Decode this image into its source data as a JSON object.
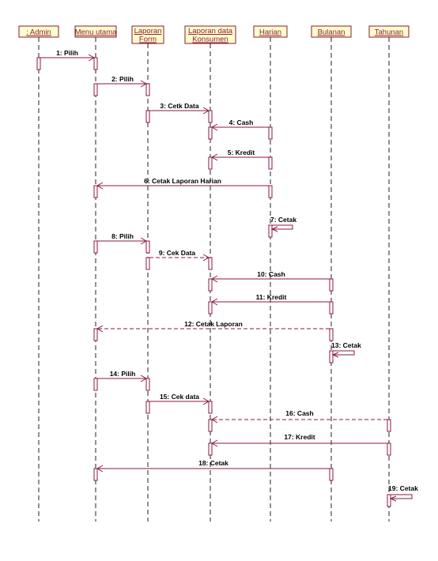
{
  "objects": [
    {
      "id": "admin",
      "label": ": Admin"
    },
    {
      "id": "menu",
      "label": "Menu utama"
    },
    {
      "id": "laporan_form",
      "label": "Laporan Form",
      "lines": [
        "Laporan",
        "Form"
      ]
    },
    {
      "id": "laporan_data",
      "label": "Laporan data Konsumen",
      "lines": [
        "Laporan data",
        "Konsumen"
      ]
    },
    {
      "id": "harian",
      "label": "Harian"
    },
    {
      "id": "bulanan",
      "label": "Bulanan"
    },
    {
      "id": "tahunan",
      "label": "Tahunan"
    }
  ],
  "messages": [
    {
      "n": 1,
      "label": "1: Pilih",
      "from": "admin",
      "to": "menu",
      "style": "solid"
    },
    {
      "n": 2,
      "label": "2: Pilih",
      "from": "menu",
      "to": "laporan_form",
      "style": "solid"
    },
    {
      "n": 3,
      "label": "3: Cetk Data",
      "from": "laporan_form",
      "to": "laporan_data",
      "style": "solid"
    },
    {
      "n": 4,
      "label": "4: Cash",
      "from": "harian",
      "to": "laporan_data",
      "style": "solid"
    },
    {
      "n": 5,
      "label": "5: Kredit",
      "from": "harian",
      "to": "laporan_data",
      "style": "solid"
    },
    {
      "n": 6,
      "label": "6: Cetak Laporan Harian",
      "from": "harian",
      "to": "menu",
      "style": "solid"
    },
    {
      "n": 7,
      "label": "7: Cetak",
      "from": "harian",
      "to": "harian",
      "style": "self"
    },
    {
      "n": 8,
      "label": "8: Pilih",
      "from": "menu",
      "to": "laporan_form",
      "style": "solid"
    },
    {
      "n": 9,
      "label": "9: Cek Data",
      "from": "laporan_form",
      "to": "laporan_data",
      "style": "dashed"
    },
    {
      "n": 10,
      "label": "10: Cash",
      "from": "bulanan",
      "to": "laporan_data",
      "style": "solid"
    },
    {
      "n": 11,
      "label": "11: Kredit",
      "from": "bulanan",
      "to": "laporan_data",
      "style": "solid"
    },
    {
      "n": 12,
      "label": "12: Cetak Laporan",
      "from": "bulanan",
      "to": "menu",
      "style": "dashed"
    },
    {
      "n": 13,
      "label": "13: Cetak",
      "from": "bulanan",
      "to": "bulanan",
      "style": "self"
    },
    {
      "n": 14,
      "label": "14: Pilih",
      "from": "menu",
      "to": "laporan_form",
      "style": "solid"
    },
    {
      "n": 15,
      "label": "15: Cek data",
      "from": "laporan_form",
      "to": "laporan_data",
      "style": "solid"
    },
    {
      "n": 16,
      "label": "16: Cash",
      "from": "tahunan",
      "to": "laporan_data",
      "style": "dashed"
    },
    {
      "n": 17,
      "label": "17: Kredit",
      "from": "tahunan",
      "to": "laporan_data",
      "style": "solid"
    },
    {
      "n": 18,
      "label": "18: Cetak",
      "from": "bulanan",
      "to": "menu",
      "style": "solid"
    },
    {
      "n": 19,
      "label": "19: Cetak",
      "from": "tahunan",
      "to": "tahunan",
      "style": "self"
    }
  ],
  "colors": {
    "line": "#8b1a3a",
    "box_fill": "#ffffcc",
    "lifeline": "#222222"
  }
}
